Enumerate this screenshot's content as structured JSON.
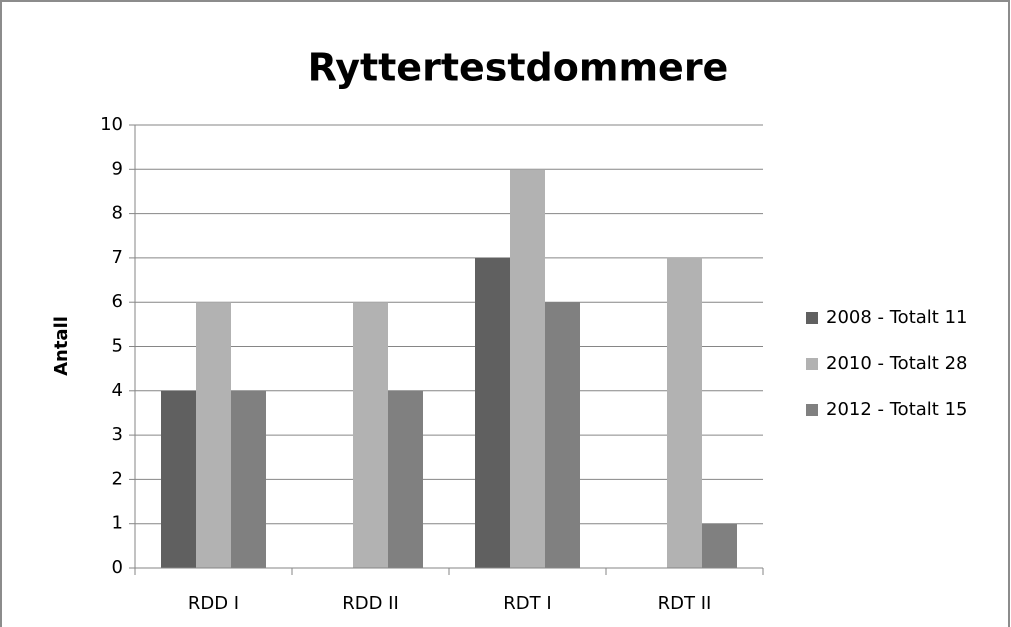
{
  "chart_data": {
    "type": "bar",
    "title": "Ryttertestdommere",
    "y_label": "Antall",
    "categories": [
      "RDD I",
      "RDD II",
      "RDT I",
      "RDT II"
    ],
    "series": [
      {
        "name": "2008 - Totalt 11",
        "color": "#606060",
        "values": [
          4,
          0,
          7,
          0
        ]
      },
      {
        "name": "2010 - Totalt 28",
        "color": "#b2b2b2",
        "values": [
          6,
          6,
          9,
          7
        ]
      },
      {
        "name": "2012 - Totalt 15",
        "color": "#808080",
        "values": [
          4,
          4,
          6,
          1
        ]
      }
    ],
    "ylim": [
      0,
      10
    ],
    "yticks": [
      0,
      1,
      2,
      3,
      4,
      5,
      6,
      7,
      8,
      9,
      10
    ],
    "grid": true,
    "legend": "right"
  }
}
